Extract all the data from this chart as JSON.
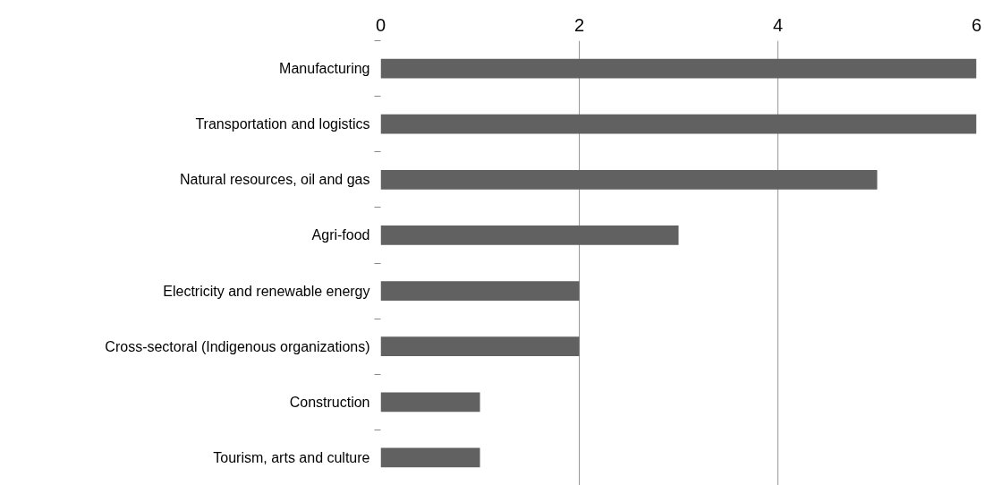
{
  "chart_data": {
    "type": "bar",
    "orientation": "horizontal",
    "categories": [
      "Manufacturing",
      "Transportation and logistics",
      "Natural resources, oil and gas",
      "Agri-food",
      "Electricity and renewable energy",
      "Cross-sectoral (Indigenous organizations)",
      "Construction",
      "Tourism, arts and culture"
    ],
    "values": [
      6,
      6,
      5,
      3,
      2,
      2,
      1,
      1
    ],
    "color": "#616161",
    "xlim": [
      0,
      6
    ],
    "xticks": [
      0,
      2,
      4,
      6
    ],
    "grid": "x"
  }
}
